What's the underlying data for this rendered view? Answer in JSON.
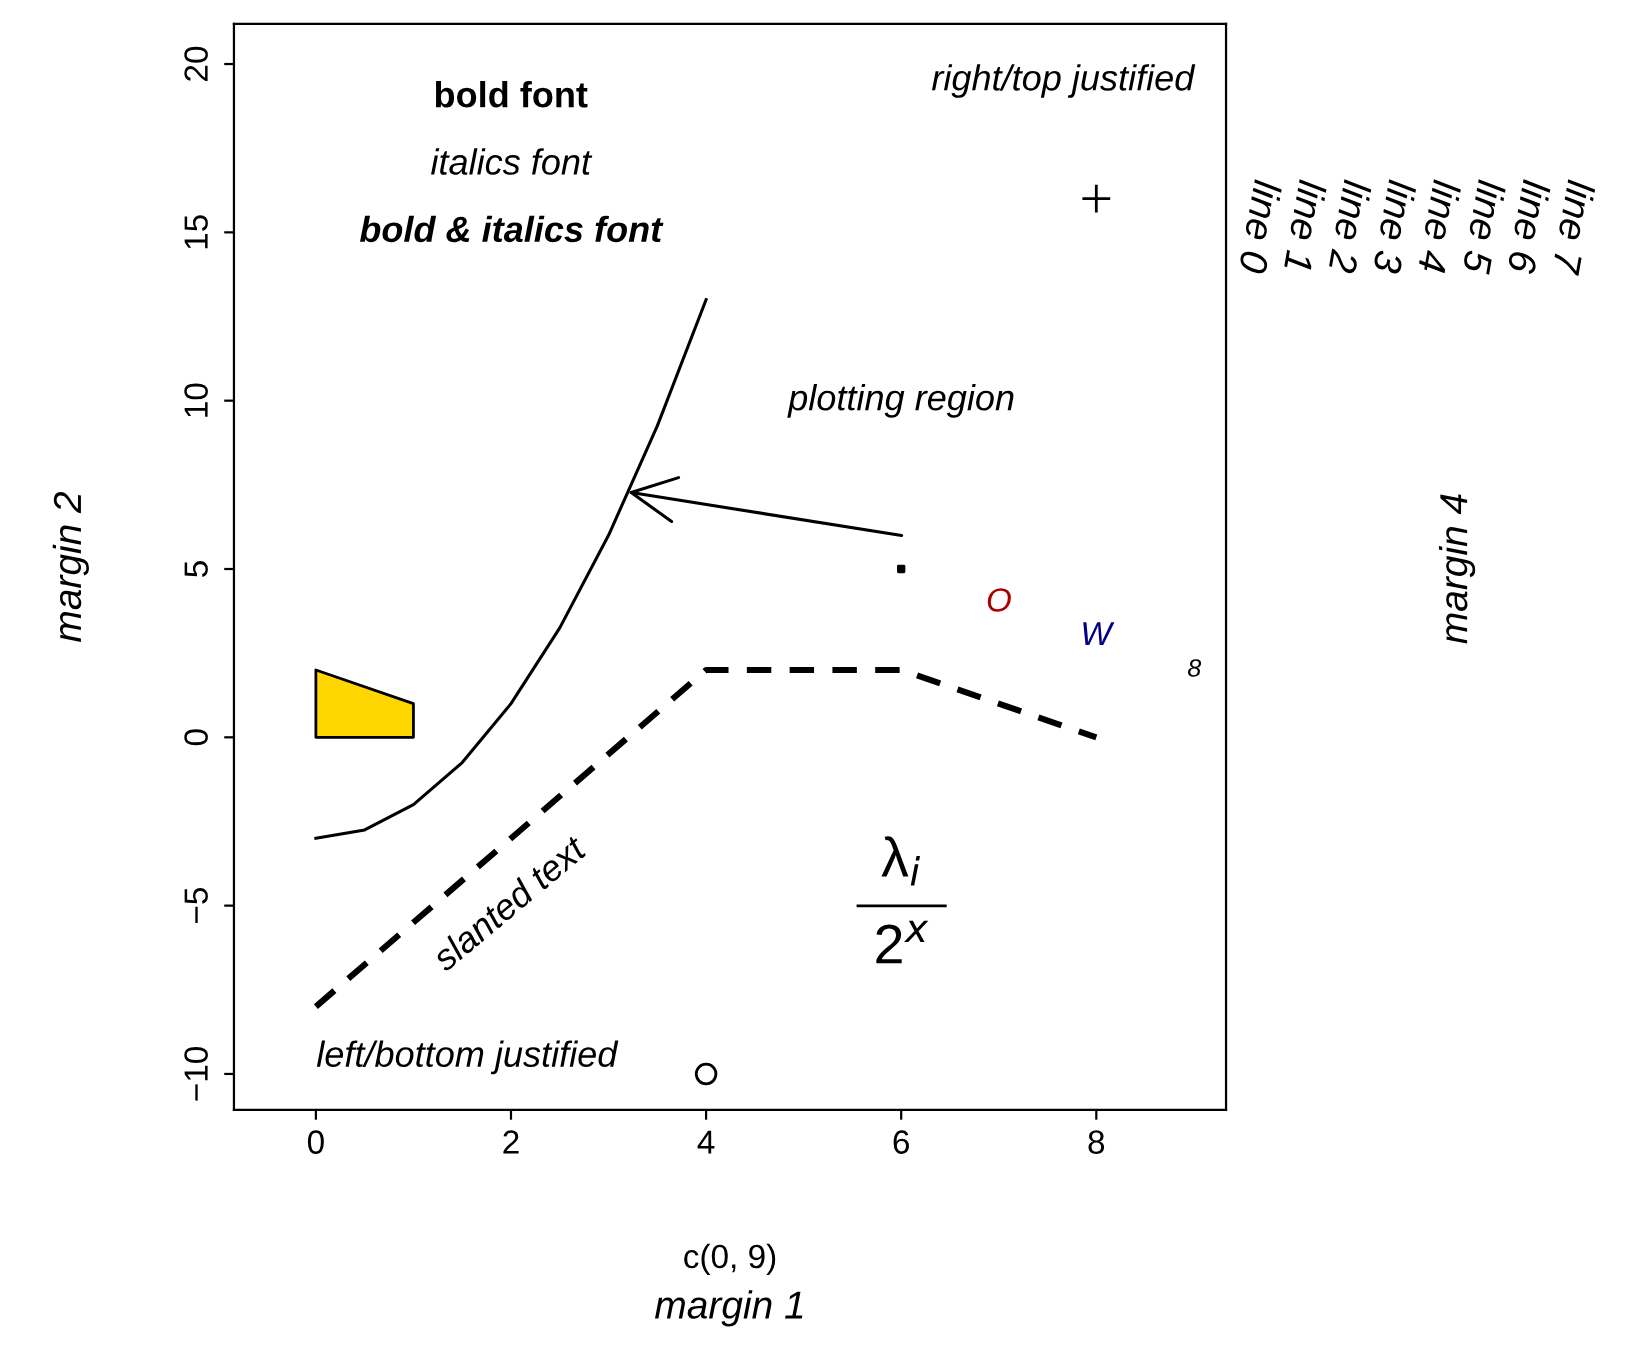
{
  "chart_data": {
    "type": "line",
    "xlabel": "c(0, 9)",
    "ylabel": "margin 2",
    "xlim": [
      -0.84,
      9.33
    ],
    "ylim": [
      -11.07,
      21.19
    ],
    "xticks": [
      0,
      2,
      4,
      6,
      8
    ],
    "yticks": [
      {
        "value": -10,
        "label": "−10"
      },
      {
        "value": -5,
        "label": "−5"
      },
      0,
      5,
      10,
      15,
      20
    ],
    "series": [
      {
        "color": "#000000",
        "line_style": "solid",
        "x": [
          0,
          0.5,
          1,
          1.5,
          2,
          2.5,
          3,
          3.5,
          4
        ],
        "values": [
          -3,
          -2.75,
          -2,
          -0.75,
          1,
          3.25,
          6,
          9.25,
          13
        ]
      },
      {
        "type": "line",
        "color": "#000000",
        "line_style": "dashed",
        "x": [
          0,
          4,
          6,
          8
        ],
        "values": [
          -8,
          2,
          2,
          0
        ]
      },
      {
        "type": "area",
        "color": "#ffd700",
        "x": [
          0,
          1
        ],
        "values": [
          2,
          1
        ]
      },
      {
        "type": "scatter",
        "color": "#000000",
        "marker": "cross",
        "x": [
          8
        ],
        "values": [
          16
        ]
      },
      {
        "type": "scatter",
        "color": "#000000",
        "marker": "circle",
        "x": [
          4
        ],
        "values": [
          -10
        ]
      },
      {
        "type": "scatter",
        "color": "#000000",
        "marker": "square",
        "x": [
          6
        ],
        "values": [
          5
        ]
      }
    ],
    "annotations": [
      "bold font",
      "italics font",
      "bold & italics font",
      "right/top justified",
      "plotting region",
      "slanted text",
      "left/bottom justified",
      "λ$_{i}$",
      "2$^{x}$",
      "O",
      "W",
      "8",
      "margin 1",
      "margin 4",
      "line 0",
      "line 1",
      "line 2",
      "line 3",
      "line 4",
      "line 5",
      "line 6",
      "line 7"
    ]
  }
}
